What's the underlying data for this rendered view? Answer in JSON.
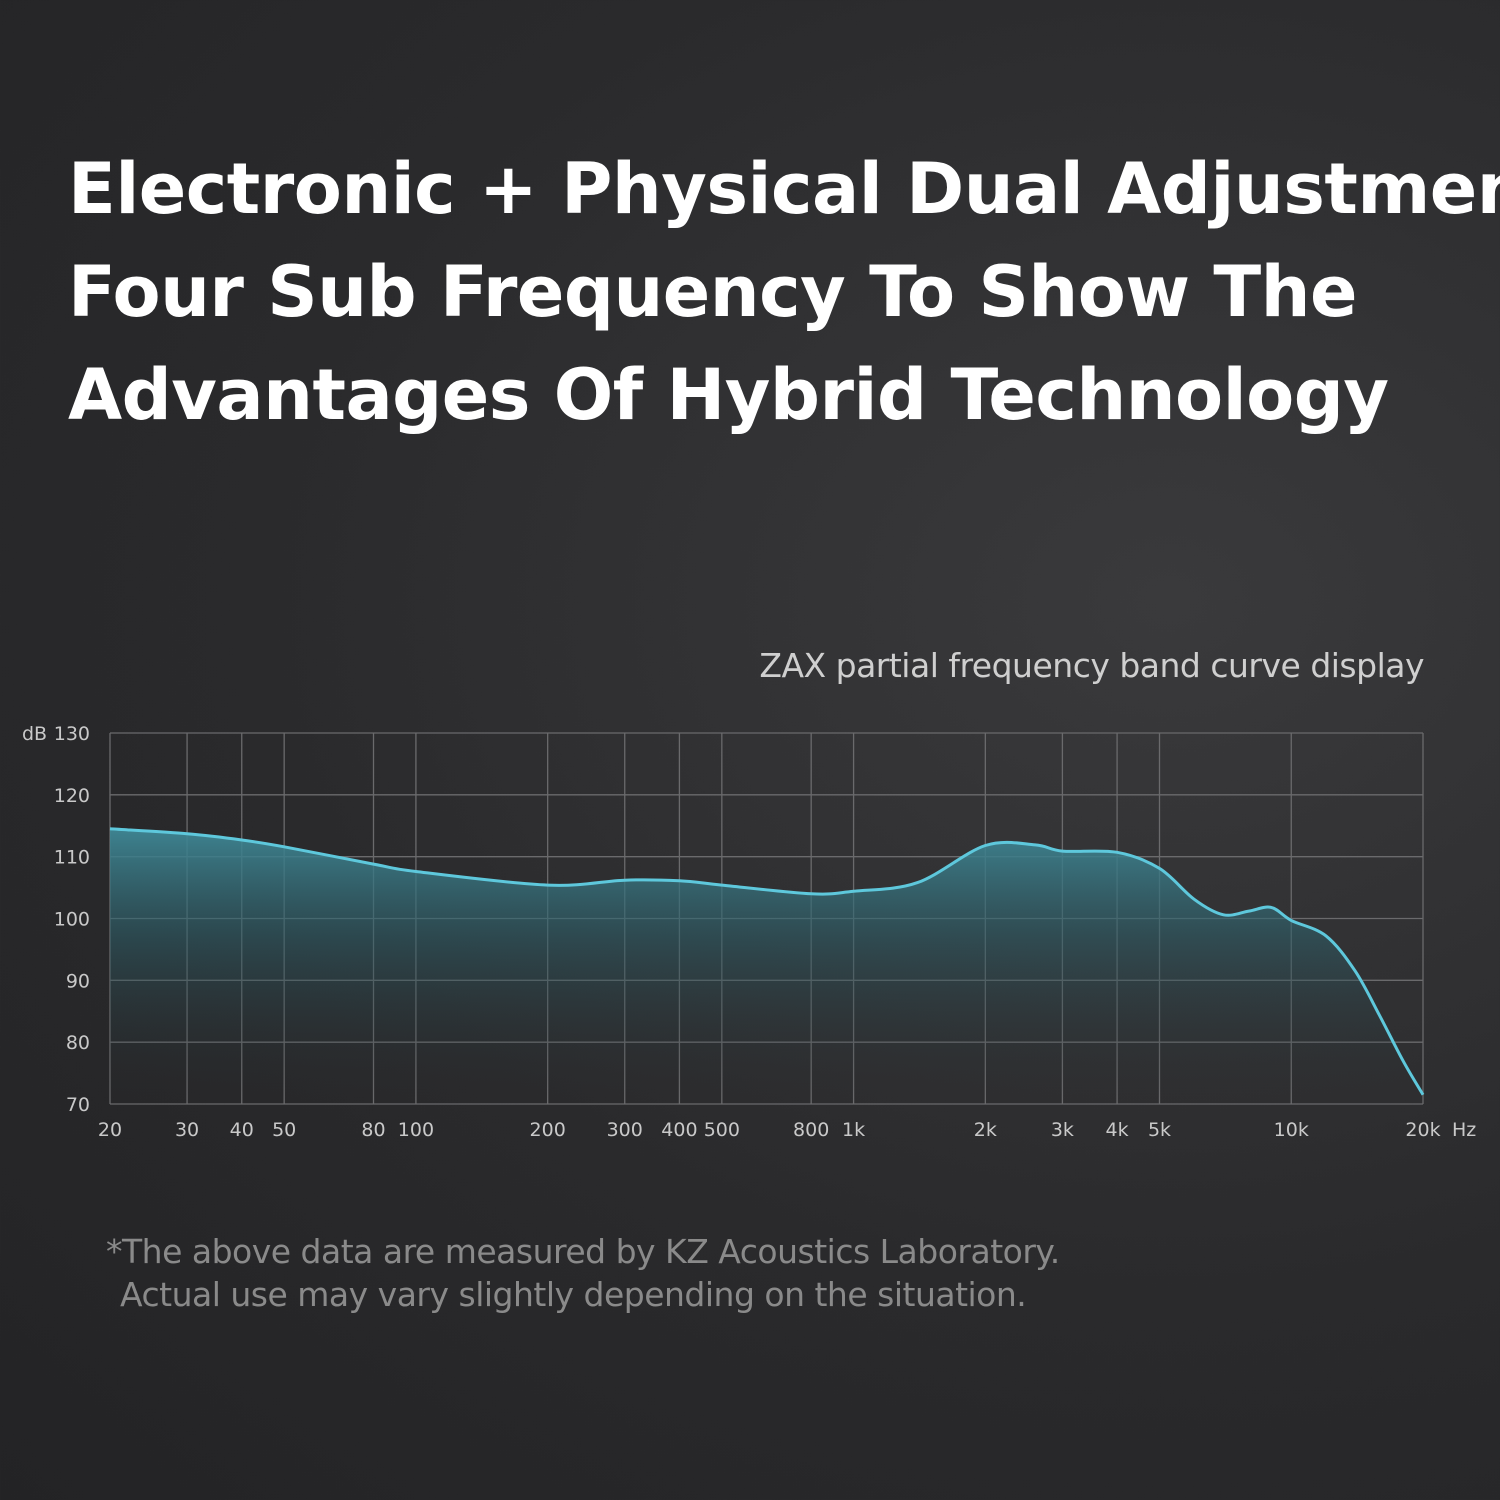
{
  "headline": {
    "line1": "Electronic + Physical Dual Adjustment",
    "line2": "Four Sub Frequency To Show The",
    "line3": "Advantages Of Hybrid Technology"
  },
  "chart_data": {
    "type": "area",
    "title": "ZAX partial frequency band curve display",
    "xlabel": "Hz",
    "ylabel": "dB",
    "x_scale": "log",
    "xlim": [
      20,
      20000
    ],
    "ylim": [
      70,
      130
    ],
    "x_ticks": [
      {
        "value": 20,
        "label": "20"
      },
      {
        "value": 30,
        "label": "30"
      },
      {
        "value": 40,
        "label": "40"
      },
      {
        "value": 50,
        "label": "50"
      },
      {
        "value": 80,
        "label": "80"
      },
      {
        "value": 100,
        "label": "100"
      },
      {
        "value": 200,
        "label": "200"
      },
      {
        "value": 300,
        "label": "300"
      },
      {
        "value": 400,
        "label": "400"
      },
      {
        "value": 500,
        "label": "500"
      },
      {
        "value": 800,
        "label": "800"
      },
      {
        "value": 1000,
        "label": "1k"
      },
      {
        "value": 2000,
        "label": "2k"
      },
      {
        "value": 3000,
        "label": "3k"
      },
      {
        "value": 4000,
        "label": "4k"
      },
      {
        "value": 5000,
        "label": "5k"
      },
      {
        "value": 10000,
        "label": "10k"
      },
      {
        "value": 20000,
        "label": "20k"
      }
    ],
    "x_gridlines": [
      20,
      30,
      40,
      50,
      80,
      100,
      200,
      300,
      400,
      500,
      800,
      1000,
      2000,
      3000,
      4000,
      5000,
      10000,
      20000
    ],
    "y_ticks": [
      {
        "value": 130,
        "label": "130"
      },
      {
        "value": 120,
        "label": "120"
      },
      {
        "value": 110,
        "label": "110"
      },
      {
        "value": 100,
        "label": "100"
      },
      {
        "value": 90,
        "label": "90"
      },
      {
        "value": 80,
        "label": "80"
      },
      {
        "value": 70,
        "label": "70"
      }
    ],
    "grid": true,
    "series": [
      {
        "x": [
          20,
          30,
          40,
          50,
          80,
          100,
          200,
          300,
          400,
          500,
          800,
          1000,
          1400,
          2000,
          2600,
          3000,
          4000,
          5000,
          6000,
          7000,
          8000,
          9000,
          10000,
          12000,
          14000,
          16000,
          18000,
          20000
        ],
        "y": [
          114.5,
          113.7,
          112.7,
          111.6,
          108.8,
          107.6,
          105.4,
          106.2,
          106.1,
          105.4,
          104,
          104.4,
          105.8,
          111.8,
          111.9,
          110.9,
          110.7,
          108.1,
          103.1,
          100.6,
          101.2,
          101.8,
          99.7,
          97.2,
          91.5,
          84,
          77,
          71.5
        ]
      }
    ],
    "colors": {
      "line": "#5ec8dc",
      "fill": "#3f8896",
      "grid": "#6a6a6c"
    }
  },
  "footnote": {
    "line1": "*The above data are measured by KZ Acoustics Laboratory.",
    "line2": "Actual use may vary slightly depending on the situation."
  }
}
